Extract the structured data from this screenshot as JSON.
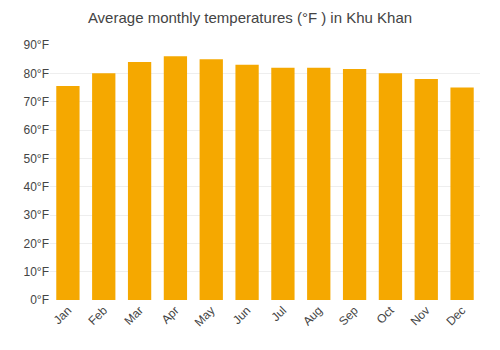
{
  "chart_data": {
    "type": "bar",
    "title": "Average monthly temperatures (°F ) in Khu Khan",
    "categories": [
      "Jan",
      "Feb",
      "Mar",
      "Apr",
      "May",
      "Jun",
      "Jul",
      "Aug",
      "Sep",
      "Oct",
      "Nov",
      "Dec"
    ],
    "values": [
      75.5,
      80.0,
      84.0,
      86.0,
      85.0,
      83.0,
      82.0,
      82.0,
      81.5,
      80.0,
      78.0,
      75.0
    ],
    "color": "#F5A800",
    "ylim": [
      0,
      90
    ],
    "yticks": [
      {
        "value": 0,
        "label": "0°F"
      },
      {
        "value": 10,
        "label": "10°F"
      },
      {
        "value": 20,
        "label": "20°F"
      },
      {
        "value": 30,
        "label": "30°F"
      },
      {
        "value": 40,
        "label": "40°F"
      },
      {
        "value": 50,
        "label": "50°F"
      },
      {
        "value": 60,
        "label": "60°F"
      },
      {
        "value": 70,
        "label": "70°F"
      },
      {
        "value": 80,
        "label": "80°F"
      },
      {
        "value": 90,
        "label": "90°F"
      }
    ],
    "grid": true
  }
}
